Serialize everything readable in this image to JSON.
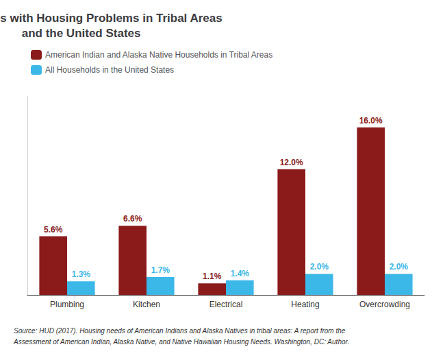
{
  "chart_data": {
    "type": "bar",
    "title": "Households with Housing Problems in Tribal Areas\nand the United States",
    "categories": [
      "Plumbing",
      "Kitchen",
      "Electrical",
      "Heating",
      "Overcrowding"
    ],
    "series": [
      {
        "name": "American Indian and Alaska Native Households in Tribal Areas",
        "color": "#8B1A1A",
        "values": [
          5.6,
          6.6,
          1.1,
          12.0,
          16.0
        ],
        "value_labels": [
          "5.6%",
          "6.6%",
          "1.1%",
          "12.0%",
          "16.0%"
        ]
      },
      {
        "name": "All Households in the United States",
        "color": "#3BB8E8",
        "values": [
          1.3,
          1.7,
          1.4,
          2.0,
          2.0
        ],
        "value_labels": [
          "1.3%",
          "1.7%",
          "1.4%",
          "2.0%",
          "2.0%"
        ]
      }
    ],
    "ylim": [
      0,
      19
    ],
    "grid": false,
    "legend": "upper left",
    "data_labels": true,
    "tick_labels": "x",
    "annotations": [
      "Source: HUD (2017). Housing needs of American Indians and Alaska Natives in tribal areas: A report from the",
      "Assessment of American Indian, Alaska Native, and Native Hawaiian Housing Needs. Washington, DC: Author."
    ]
  }
}
